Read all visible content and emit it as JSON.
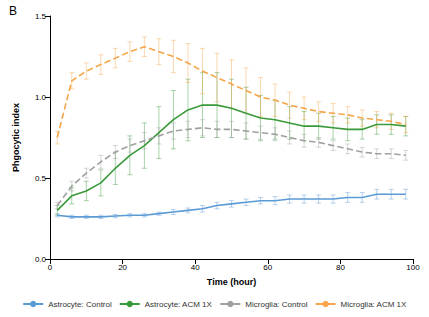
{
  "chart_data": {
    "type": "line",
    "title": "B",
    "x_label": "Time (hour)",
    "y_label": "Phgocytic index",
    "x": [
      2,
      6,
      10,
      14,
      18,
      22,
      26,
      30,
      34,
      38,
      42,
      46,
      50,
      54,
      58,
      62,
      66,
      70,
      74,
      78,
      82,
      86,
      90,
      94,
      98
    ],
    "series": [
      {
        "name": "Astrocyte: Control",
        "color": "#5b9bd5",
        "line_style": "solid",
        "values": [
          0.27,
          0.26,
          0.26,
          0.26,
          0.265,
          0.27,
          0.27,
          0.28,
          0.29,
          0.3,
          0.31,
          0.33,
          0.34,
          0.35,
          0.36,
          0.36,
          0.37,
          0.37,
          0.37,
          0.37,
          0.38,
          0.38,
          0.4,
          0.4,
          0.4
        ],
        "errors": [
          0.01,
          0.01,
          0.01,
          0.01,
          0.01,
          0.01,
          0.01,
          0.01,
          0.015,
          0.015,
          0.02,
          0.02,
          0.02,
          0.02,
          0.02,
          0.025,
          0.025,
          0.025,
          0.025,
          0.025,
          0.03,
          0.03,
          0.03,
          0.03,
          0.03
        ]
      },
      {
        "name": "Astrocyte: ACM 1X",
        "color": "#3a9a3a",
        "line_style": "solid",
        "values": [
          0.3,
          0.39,
          0.42,
          0.47,
          0.56,
          0.64,
          0.7,
          0.78,
          0.86,
          0.92,
          0.95,
          0.95,
          0.93,
          0.9,
          0.87,
          0.86,
          0.84,
          0.82,
          0.82,
          0.81,
          0.8,
          0.8,
          0.83,
          0.83,
          0.82
        ],
        "errors": [
          0.03,
          0.05,
          0.06,
          0.08,
          0.1,
          0.12,
          0.14,
          0.16,
          0.18,
          0.19,
          0.2,
          0.2,
          0.18,
          0.16,
          0.14,
          0.12,
          0.1,
          0.09,
          0.08,
          0.07,
          0.07,
          0.06,
          0.06,
          0.06,
          0.06
        ]
      },
      {
        "name": "Microglia: Control",
        "color": "#a0a0a0",
        "line_style": "dashed",
        "values": [
          0.33,
          0.45,
          0.53,
          0.6,
          0.66,
          0.7,
          0.73,
          0.76,
          0.79,
          0.8,
          0.81,
          0.8,
          0.8,
          0.79,
          0.78,
          0.77,
          0.75,
          0.73,
          0.72,
          0.7,
          0.68,
          0.66,
          0.65,
          0.65,
          0.64
        ],
        "errors": [
          0.02,
          0.03,
          0.03,
          0.04,
          0.04,
          0.04,
          0.05,
          0.05,
          0.05,
          0.05,
          0.05,
          0.05,
          0.05,
          0.05,
          0.04,
          0.04,
          0.04,
          0.04,
          0.03,
          0.03,
          0.03,
          0.03,
          0.03,
          0.03,
          0.03
        ]
      },
      {
        "name": "Microglia: ACM 1X",
        "color": "#f5a64a",
        "line_style": "dashed",
        "values": [
          0.75,
          1.1,
          1.16,
          1.2,
          1.24,
          1.28,
          1.31,
          1.28,
          1.25,
          1.21,
          1.16,
          1.12,
          1.08,
          1.04,
          1.0,
          0.98,
          0.95,
          0.93,
          0.91,
          0.9,
          0.89,
          0.87,
          0.86,
          0.85,
          0.83
        ],
        "errors": [
          0.04,
          0.05,
          0.05,
          0.06,
          0.06,
          0.06,
          0.06,
          0.08,
          0.1,
          0.12,
          0.14,
          0.15,
          0.15,
          0.14,
          0.12,
          0.1,
          0.08,
          0.07,
          0.06,
          0.06,
          0.05,
          0.05,
          0.05,
          0.05,
          0.05
        ]
      }
    ],
    "xlim": [
      0,
      100
    ],
    "xticks": [
      0,
      20,
      40,
      60,
      80,
      100
    ],
    "ylim": [
      0,
      1.5
    ],
    "yticks": [
      {
        "value": 0,
        "label": "0.0"
      },
      {
        "value": 0.5,
        "label": "0.5"
      },
      {
        "value": 1.0,
        "label": "1.0"
      },
      {
        "value": 1.5,
        "label": "1.5"
      }
    ],
    "grid": false,
    "legend": "bottom",
    "marker": "none"
  }
}
